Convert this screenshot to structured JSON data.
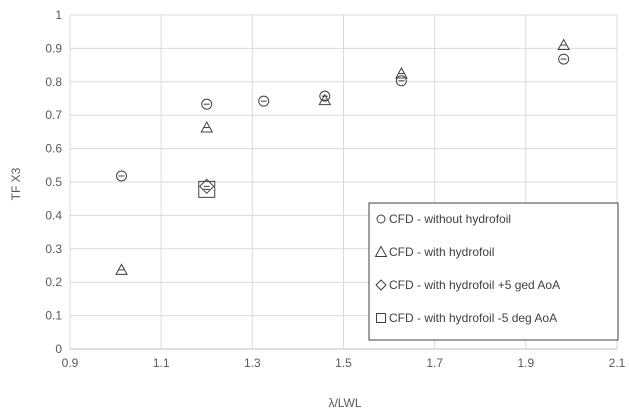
{
  "chart_data": {
    "type": "scatter",
    "xlabel": "λ/LWL",
    "ylabel": "TF X3",
    "xlim": [
      0.9,
      2.1
    ],
    "ylim": [
      0,
      1
    ],
    "x_ticks": [
      "0.9",
      "1.1",
      "1.3",
      "1.5",
      "1.7",
      "1.9",
      "2.1"
    ],
    "y_ticks": [
      "0",
      "0.1",
      "0.2",
      "0.3",
      "0.4",
      "0.5",
      "0.6",
      "0.7",
      "0.8",
      "0.9",
      "1"
    ],
    "grid": true,
    "legend_position": "bottom-right",
    "marker_color": "#404040",
    "series": [
      {
        "name": "CFD - without hydrofoil",
        "marker": "circle",
        "points": [
          {
            "x": 1.013,
            "y": 0.518
          },
          {
            "x": 1.2,
            "y": 0.733
          },
          {
            "x": 1.325,
            "y": 0.742
          },
          {
            "x": 1.459,
            "y": 0.757
          },
          {
            "x": 1.627,
            "y": 0.803
          },
          {
            "x": 1.983,
            "y": 0.868
          }
        ]
      },
      {
        "name": "CFD - with hydrofoil",
        "marker": "triangle",
        "points": [
          {
            "x": 1.013,
            "y": 0.237
          },
          {
            "x": 1.2,
            "y": 0.663
          },
          {
            "x": 1.459,
            "y": 0.745
          },
          {
            "x": 1.627,
            "y": 0.825
          },
          {
            "x": 1.983,
            "y": 0.91
          }
        ]
      },
      {
        "name": "CFD - with hydrofoil +5 ged AoA",
        "marker": "diamond",
        "points": [
          {
            "x": 1.2,
            "y": 0.487
          }
        ]
      },
      {
        "name": "CFD - with hydrofoil -5 deg AoA",
        "marker": "square",
        "points": [
          {
            "x": 1.2,
            "y": 0.478
          }
        ]
      }
    ]
  }
}
